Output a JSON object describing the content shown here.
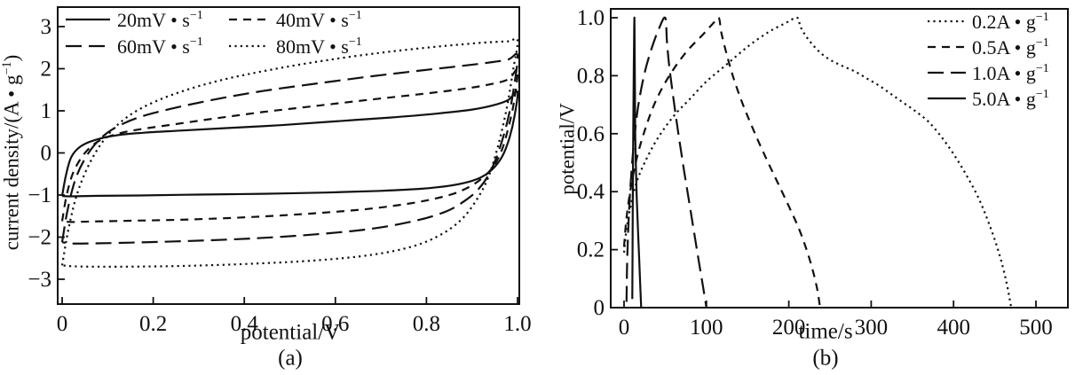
{
  "figure": {
    "background": "#ffffff",
    "ink": "#111111"
  },
  "chart_data": [
    {
      "id": "panel-a",
      "type": "line",
      "panel_label": "(a)",
      "xlabel": {
        "pre": "potential/V",
        "sup": "",
        "post": ""
      },
      "ylabel": {
        "pre": "current density/(A • g",
        "sup": "−1",
        "post": ")"
      },
      "xlim": [
        0,
        1.0
      ],
      "ylim": [
        -3.6,
        3.5
      ],
      "grid": false,
      "xticks": [
        0,
        0.2,
        0.4,
        0.6,
        0.8,
        1.0
      ],
      "xtick_labels": [
        "0",
        "0.2",
        "0.4",
        "0.6",
        "0.8",
        "1.0"
      ],
      "yticks": [
        3,
        2,
        1,
        0,
        -1,
        -2,
        -3
      ],
      "ytick_labels": [
        "3",
        "2",
        "1",
        "0",
        "−1",
        "−2",
        "−3"
      ],
      "legend": {
        "position": "top-left",
        "items": [
          {
            "pre": "20mV • s",
            "sup": "−1",
            "dash": "solid"
          },
          {
            "pre": "40mV • s",
            "sup": "−1",
            "dash": "dash"
          },
          {
            "pre": "60mV • s",
            "sup": "−1",
            "dash": "longdash"
          },
          {
            "pre": "80mV • s",
            "sup": "−1",
            "dash": "dot"
          }
        ]
      },
      "series": [
        {
          "name": "20 mV/s",
          "slug": "cv-20mv-s",
          "dash": "solid",
          "points": [
            [
              0,
              -1.02
            ],
            [
              0.008,
              -0.55
            ],
            [
              0.02,
              -0.1
            ],
            [
              0.04,
              0.15
            ],
            [
              0.07,
              0.3
            ],
            [
              0.12,
              0.42
            ],
            [
              0.18,
              0.48
            ],
            [
              0.26,
              0.53
            ],
            [
              0.36,
              0.59
            ],
            [
              0.48,
              0.66
            ],
            [
              0.6,
              0.75
            ],
            [
              0.72,
              0.84
            ],
            [
              0.82,
              0.93
            ],
            [
              0.9,
              1.03
            ],
            [
              0.95,
              1.14
            ],
            [
              0.98,
              1.26
            ],
            [
              1.0,
              1.45
            ],
            [
              0.993,
              0.85
            ],
            [
              0.982,
              0.35
            ],
            [
              0.968,
              -0.05
            ],
            [
              0.95,
              -0.33
            ],
            [
              0.925,
              -0.55
            ],
            [
              0.895,
              -0.68
            ],
            [
              0.85,
              -0.78
            ],
            [
              0.79,
              -0.85
            ],
            [
              0.7,
              -0.9
            ],
            [
              0.58,
              -0.94
            ],
            [
              0.44,
              -0.97
            ],
            [
              0.3,
              -0.99
            ],
            [
              0.17,
              -1.01
            ],
            [
              0.08,
              -1.02
            ],
            [
              0.03,
              -1.03
            ],
            [
              0.008,
              -1.03
            ],
            [
              0,
              -1.02
            ]
          ]
        },
        {
          "name": "40 mV/s",
          "slug": "cv-40mv-s",
          "dash": "dash",
          "points": [
            [
              0,
              -1.62
            ],
            [
              0.01,
              -1.0
            ],
            [
              0.025,
              -0.45
            ],
            [
              0.05,
              0.0
            ],
            [
              0.08,
              0.28
            ],
            [
              0.12,
              0.45
            ],
            [
              0.17,
              0.56
            ],
            [
              0.24,
              0.67
            ],
            [
              0.33,
              0.81
            ],
            [
              0.44,
              0.97
            ],
            [
              0.56,
              1.12
            ],
            [
              0.68,
              1.27
            ],
            [
              0.79,
              1.4
            ],
            [
              0.88,
              1.52
            ],
            [
              0.94,
              1.63
            ],
            [
              0.98,
              1.75
            ],
            [
              1.0,
              1.97
            ],
            [
              0.992,
              1.2
            ],
            [
              0.98,
              0.6
            ],
            [
              0.965,
              0.05
            ],
            [
              0.945,
              -0.35
            ],
            [
              0.92,
              -0.62
            ],
            [
              0.89,
              -0.83
            ],
            [
              0.85,
              -1.0
            ],
            [
              0.78,
              -1.17
            ],
            [
              0.68,
              -1.32
            ],
            [
              0.56,
              -1.43
            ],
            [
              0.42,
              -1.52
            ],
            [
              0.28,
              -1.58
            ],
            [
              0.15,
              -1.61
            ],
            [
              0.06,
              -1.63
            ],
            [
              0.02,
              -1.64
            ],
            [
              0,
              -1.62
            ]
          ]
        },
        {
          "name": "60 mV/s",
          "slug": "cv-60mv-s",
          "dash": "longdash",
          "points": [
            [
              0,
              -2.12
            ],
            [
              0.012,
              -1.35
            ],
            [
              0.03,
              -0.6
            ],
            [
              0.055,
              -0.05
            ],
            [
              0.085,
              0.35
            ],
            [
              0.12,
              0.62
            ],
            [
              0.17,
              0.85
            ],
            [
              0.24,
              1.05
            ],
            [
              0.33,
              1.26
            ],
            [
              0.44,
              1.47
            ],
            [
              0.56,
              1.65
            ],
            [
              0.68,
              1.82
            ],
            [
              0.79,
              1.96
            ],
            [
              0.88,
              2.07
            ],
            [
              0.94,
              2.15
            ],
            [
              0.98,
              2.22
            ],
            [
              1.0,
              2.32
            ],
            [
              0.992,
              1.55
            ],
            [
              0.98,
              0.85
            ],
            [
              0.962,
              0.15
            ],
            [
              0.94,
              -0.45
            ],
            [
              0.915,
              -0.85
            ],
            [
              0.885,
              -1.13
            ],
            [
              0.845,
              -1.38
            ],
            [
              0.78,
              -1.6
            ],
            [
              0.68,
              -1.8
            ],
            [
              0.56,
              -1.93
            ],
            [
              0.42,
              -2.03
            ],
            [
              0.28,
              -2.09
            ],
            [
              0.15,
              -2.13
            ],
            [
              0.06,
              -2.15
            ],
            [
              0.02,
              -2.15
            ],
            [
              0,
              -2.12
            ]
          ]
        },
        {
          "name": "80 mV/s",
          "slug": "cv-80mv-s",
          "dash": "dot",
          "points": [
            [
              0,
              -2.67
            ],
            [
              0.015,
              -1.75
            ],
            [
              0.035,
              -0.9
            ],
            [
              0.065,
              -0.15
            ],
            [
              0.1,
              0.42
            ],
            [
              0.14,
              0.83
            ],
            [
              0.19,
              1.15
            ],
            [
              0.26,
              1.45
            ],
            [
              0.35,
              1.73
            ],
            [
              0.46,
              1.98
            ],
            [
              0.58,
              2.2
            ],
            [
              0.7,
              2.38
            ],
            [
              0.8,
              2.5
            ],
            [
              0.88,
              2.58
            ],
            [
              0.94,
              2.63
            ],
            [
              0.98,
              2.65
            ],
            [
              1.0,
              2.67
            ],
            [
              0.99,
              1.95
            ],
            [
              0.977,
              1.1
            ],
            [
              0.958,
              0.2
            ],
            [
              0.935,
              -0.6
            ],
            [
              0.908,
              -1.15
            ],
            [
              0.875,
              -1.6
            ],
            [
              0.83,
              -1.95
            ],
            [
              0.77,
              -2.22
            ],
            [
              0.68,
              -2.42
            ],
            [
              0.56,
              -2.55
            ],
            [
              0.42,
              -2.63
            ],
            [
              0.28,
              -2.68
            ],
            [
              0.15,
              -2.7
            ],
            [
              0.06,
              -2.7
            ],
            [
              0.02,
              -2.69
            ],
            [
              0,
              -2.67
            ]
          ]
        }
      ]
    },
    {
      "id": "panel-b",
      "type": "line",
      "panel_label": "(b)",
      "xlabel": {
        "pre": "time/s",
        "sup": "",
        "post": ""
      },
      "ylabel": {
        "pre": "potential/V",
        "sup": "",
        "post": ""
      },
      "xlim": [
        0,
        540
      ],
      "ylim": [
        0,
        1.03
      ],
      "grid": false,
      "xticks": [
        0,
        100,
        200,
        300,
        400,
        500
      ],
      "xtick_labels": [
        "0",
        "100",
        "200",
        "300",
        "400",
        "500"
      ],
      "yticks": [
        1.0,
        0.8,
        0.6,
        0.4,
        0.2,
        0
      ],
      "ytick_labels": [
        "1.0",
        "0.8",
        "0.6",
        "0.4",
        "0.2",
        "0"
      ],
      "legend": {
        "position": "top-right",
        "items": [
          {
            "pre": "0.2A • g",
            "sup": "−1",
            "dash": "dot"
          },
          {
            "pre": "0.5A • g",
            "sup": "−1",
            "dash": "dash"
          },
          {
            "pre": "1.0A • g",
            "sup": "−1",
            "dash": "longdash"
          },
          {
            "pre": "5.0A • g",
            "sup": "−1",
            "dash": "solid"
          }
        ]
      },
      "series": [
        {
          "name": "0.2 A/g",
          "slug": "gcd-02a-g",
          "dash": "dot",
          "points": [
            [
              0,
              0.19
            ],
            [
              3,
              0.27
            ],
            [
              8,
              0.35
            ],
            [
              15,
              0.43
            ],
            [
              25,
              0.5
            ],
            [
              40,
              0.58
            ],
            [
              60,
              0.66
            ],
            [
              80,
              0.72
            ],
            [
              100,
              0.78
            ],
            [
              125,
              0.84
            ],
            [
              150,
              0.9
            ],
            [
              175,
              0.95
            ],
            [
              195,
              0.98
            ],
            [
              210,
              1.0
            ],
            [
              214,
              0.97
            ],
            [
              220,
              0.94
            ],
            [
              228,
              0.91
            ],
            [
              238,
              0.88
            ],
            [
              250,
              0.855
            ],
            [
              264,
              0.835
            ],
            [
              280,
              0.815
            ],
            [
              295,
              0.79
            ],
            [
              310,
              0.765
            ],
            [
              325,
              0.735
            ],
            [
              340,
              0.705
            ],
            [
              355,
              0.675
            ],
            [
              370,
              0.64
            ],
            [
              385,
              0.59
            ],
            [
              400,
              0.53
            ],
            [
              415,
              0.46
            ],
            [
              430,
              0.38
            ],
            [
              443,
              0.29
            ],
            [
              455,
              0.19
            ],
            [
              464,
              0.09
            ],
            [
              470,
              0
            ]
          ]
        },
        {
          "name": "0.5 A/g",
          "slug": "gcd-05a-g",
          "dash": "dash",
          "points": [
            [
              0,
              0.21
            ],
            [
              3,
              0.31
            ],
            [
              8,
              0.41
            ],
            [
              15,
              0.51
            ],
            [
              25,
              0.61
            ],
            [
              38,
              0.71
            ],
            [
              55,
              0.8
            ],
            [
              75,
              0.88
            ],
            [
              95,
              0.94
            ],
            [
              108,
              0.98
            ],
            [
              115,
              1.0
            ],
            [
              118,
              0.95
            ],
            [
              124,
              0.88
            ],
            [
              132,
              0.8
            ],
            [
              143,
              0.71
            ],
            [
              156,
              0.62
            ],
            [
              170,
              0.53
            ],
            [
              185,
              0.44
            ],
            [
              200,
              0.35
            ],
            [
              214,
              0.26
            ],
            [
              226,
              0.16
            ],
            [
              234,
              0.07
            ],
            [
              238,
              0
            ]
          ]
        },
        {
          "name": "1.0 A/g",
          "slug": "gcd-10a-g",
          "dash": "longdash",
          "points": [
            [
              3,
              0.02
            ],
            [
              4,
              0.18
            ],
            [
              6,
              0.33
            ],
            [
              9,
              0.47
            ],
            [
              13,
              0.6
            ],
            [
              18,
              0.71
            ],
            [
              25,
              0.81
            ],
            [
              33,
              0.89
            ],
            [
              42,
              0.96
            ],
            [
              50,
              1.0
            ],
            [
              52,
              0.92
            ],
            [
              55,
              0.83
            ],
            [
              60,
              0.72
            ],
            [
              66,
              0.6
            ],
            [
              73,
              0.47
            ],
            [
              81,
              0.33
            ],
            [
              89,
              0.19
            ],
            [
              96,
              0.07
            ],
            [
              100,
              0
            ]
          ]
        },
        {
          "name": "5.0 A/g",
          "slug": "gcd-50a-g",
          "dash": "solid",
          "points": [
            [
              10,
              0.03
            ],
            [
              10.6,
              0.35
            ],
            [
              11.2,
              0.62
            ],
            [
              11.9,
              0.84
            ],
            [
              12.6,
              1.0
            ],
            [
              13.1,
              0.78
            ],
            [
              13.6,
              0.6
            ],
            [
              14.4,
              0.48
            ],
            [
              15.5,
              0.37
            ],
            [
              17,
              0.26
            ],
            [
              18.6,
              0.15
            ],
            [
              20,
              0.05
            ],
            [
              20.8,
              0
            ]
          ]
        }
      ]
    }
  ]
}
